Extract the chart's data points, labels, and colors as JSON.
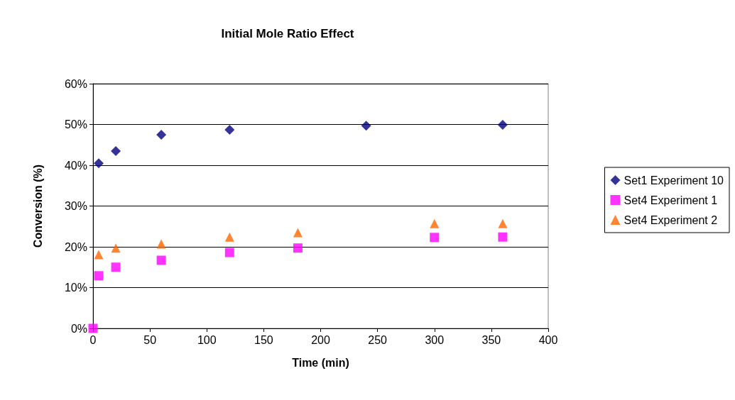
{
  "chart_data": {
    "type": "scatter",
    "title": "Initial Mole Ratio Effect",
    "xlabel": "Time (min)",
    "ylabel": "Conversion (%)",
    "series": [
      {
        "name": "Set1 Experiment 10",
        "color": "#000080",
        "marker": "diamond",
        "x": [
          5,
          20,
          60,
          120,
          240,
          360
        ],
        "values": [
          40.5,
          43.5,
          47.5,
          48.7,
          49.7,
          49.9
        ]
      },
      {
        "name": "Set4 Experiment 1",
        "color": "#ff00ff",
        "marker": "square",
        "x": [
          0,
          5,
          20,
          60,
          120,
          180,
          300,
          360
        ],
        "values": [
          0,
          12.9,
          15,
          16.7,
          18.6,
          19.7,
          22.3,
          22.4
        ]
      },
      {
        "name": "Set4 Experiment 2",
        "color": "#ff6600",
        "marker": "triangle",
        "x": [
          5,
          20,
          60,
          120,
          180,
          300,
          360
        ],
        "values": [
          18.1,
          19.7,
          20.7,
          22.4,
          23.5,
          25.7,
          25.7
        ]
      }
    ],
    "xlim": [
      0,
      400
    ],
    "xticks": [
      0,
      50,
      100,
      150,
      200,
      250,
      300,
      350,
      400
    ],
    "ylim": [
      0,
      60
    ],
    "yticks": [
      {
        "value": 0,
        "label": "0%"
      },
      {
        "value": 10,
        "label": "10%"
      },
      {
        "value": 20,
        "label": "20%"
      },
      {
        "value": 30,
        "label": "30%"
      },
      {
        "value": 40,
        "label": "40%"
      },
      {
        "value": 50,
        "label": "50%"
      },
      {
        "value": 60,
        "label": "60%"
      }
    ],
    "grid": "y",
    "legend": "right"
  }
}
